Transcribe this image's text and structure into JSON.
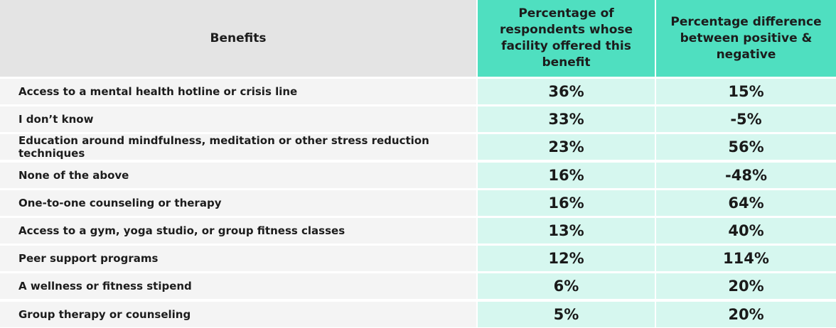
{
  "chart_data": {
    "type": "table",
    "columns": [
      "Benefits",
      "Percentage of respondents whose facility offered this benefit",
      "Percentage difference between positive & negative"
    ],
    "rows": [
      {
        "benefit": "Access to a mental health hotline or crisis line",
        "offered": "36%",
        "difference": "15%"
      },
      {
        "benefit": "I don’t know",
        "offered": "33%",
        "difference": "-5%"
      },
      {
        "benefit": "Education around mindfulness, meditation or other stress reduction techniques",
        "offered": "23%",
        "difference": "56%"
      },
      {
        "benefit": "None of the above",
        "offered": "16%",
        "difference": "-48%"
      },
      {
        "benefit": "One-to-one counseling or therapy",
        "offered": "16%",
        "difference": "64%"
      },
      {
        "benefit": "Access to a gym, yoga studio, or group fitness classes",
        "offered": "13%",
        "difference": "40%"
      },
      {
        "benefit": "Peer support programs",
        "offered": "12%",
        "difference": "114%"
      },
      {
        "benefit": "A wellness or fitness stipend",
        "offered": "6%",
        "difference": "20%"
      },
      {
        "benefit": "Group therapy or counseling",
        "offered": "5%",
        "difference": "20%"
      }
    ]
  },
  "colors": {
    "header_gray": "#e4e4e4",
    "header_teal": "#4fdfc0",
    "cell_gray": "#f4f4f4",
    "cell_teal": "#d6f7ef"
  }
}
